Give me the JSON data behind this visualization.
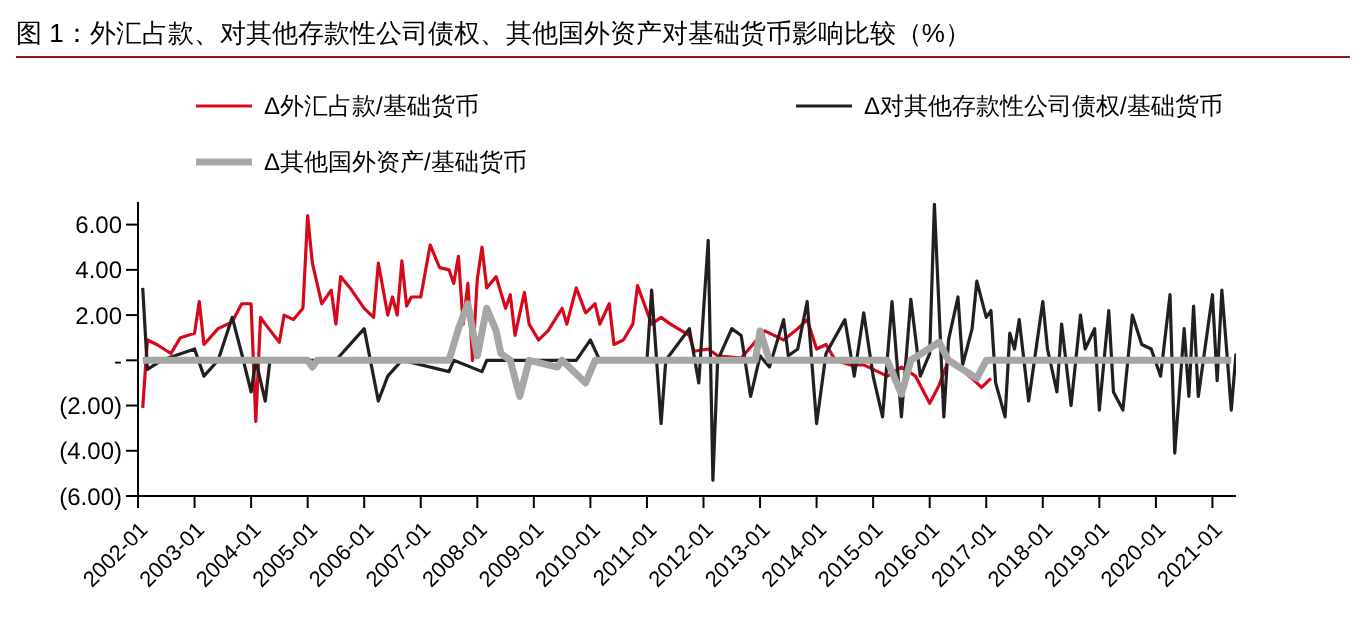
{
  "chart_data": {
    "type": "line",
    "title": "图 1：外汇占款、对其他存款性公司债权、其他国外资产对基础货币影响比较（%）",
    "legend": "top",
    "grid": false,
    "marker": "none",
    "line_style": "solid",
    "xlim": [
      "2002-01",
      "2021-06"
    ],
    "xticks": [
      "2002-01",
      "2003-01",
      "2004-01",
      "2005-01",
      "2006-01",
      "2007-01",
      "2008-01",
      "2009-01",
      "2010-01",
      "2011-01",
      "2012-01",
      "2013-01",
      "2014-01",
      "2015-01",
      "2016-01",
      "2017-01",
      "2018-01",
      "2019-01",
      "2020-01",
      "2021-01"
    ],
    "ylim": [
      -6,
      7
    ],
    "yticks": [
      {
        "value": 6,
        "label": "6.00"
      },
      {
        "value": 4,
        "label": "4.00"
      },
      {
        "value": 2,
        "label": "2.00"
      },
      {
        "value": 0,
        "label": "-"
      },
      {
        "value": -2,
        "label": "(2.00)"
      },
      {
        "value": -4,
        "label": "(4.00)"
      },
      {
        "value": -6,
        "label": "(6.00)"
      }
    ],
    "series": [
      {
        "name": "Δ外汇占款/基础货币",
        "color": "#d7081c",
        "x": [
          "2002-02",
          "2002-03",
          "2002-05",
          "2002-08",
          "2002-10",
          "2003-01",
          "2003-02",
          "2003-03",
          "2003-06",
          "2003-09",
          "2003-11",
          "2004-01",
          "2004-02",
          "2004-03",
          "2004-04",
          "2004-07",
          "2004-08",
          "2004-10",
          "2004-12",
          "2005-01",
          "2005-02",
          "2005-04",
          "2005-06",
          "2005-07",
          "2005-08",
          "2005-10",
          "2006-01",
          "2006-03",
          "2006-04",
          "2006-06",
          "2006-07",
          "2006-08",
          "2006-09",
          "2006-10",
          "2006-11",
          "2007-01",
          "2007-03",
          "2007-05",
          "2007-07",
          "2007-08",
          "2007-09",
          "2007-10",
          "2007-11",
          "2007-12",
          "2008-01",
          "2008-02",
          "2008-03",
          "2008-05",
          "2008-07",
          "2008-08",
          "2008-09",
          "2008-11",
          "2008-12",
          "2009-02",
          "2009-04",
          "2009-07",
          "2009-08",
          "2009-10",
          "2009-12",
          "2010-02",
          "2010-03",
          "2010-05",
          "2010-06",
          "2010-08",
          "2010-10",
          "2010-11",
          "2011-02",
          "2011-04",
          "2011-06",
          "2011-10",
          "2011-11",
          "2012-02",
          "2012-04",
          "2012-09",
          "2013-02",
          "2013-06",
          "2013-09",
          "2013-11",
          "2014-01",
          "2014-03",
          "2014-05",
          "2014-08",
          "2014-11",
          "2015-02",
          "2015-04",
          "2015-07",
          "2015-10",
          "2016-01",
          "2016-03",
          "2016-05",
          "2016-07",
          "2016-10",
          "2016-12",
          "2017-02"
        ],
        "values": [
          -2.1,
          0.9,
          0.7,
          0.3,
          1.0,
          1.2,
          2.6,
          0.7,
          1.4,
          1.7,
          2.5,
          2.5,
          -2.7,
          1.9,
          1.6,
          0.8,
          2.0,
          1.8,
          2.3,
          6.4,
          4.3,
          2.5,
          3.1,
          1.6,
          3.7,
          3.2,
          2.3,
          1.9,
          4.3,
          2.0,
          2.8,
          2.0,
          4.4,
          2.4,
          2.8,
          2.8,
          5.1,
          4.1,
          4.0,
          3.4,
          4.6,
          1.6,
          3.4,
          0,
          3.6,
          5.0,
          3.2,
          3.7,
          2.3,
          2.9,
          1.1,
          3.0,
          1.6,
          0.9,
          1.3,
          2.3,
          1.6,
          3.2,
          2.1,
          2.5,
          1.6,
          2.5,
          0.7,
          0.9,
          1.6,
          3.3,
          1.6,
          1.9,
          1.6,
          1.1,
          0.4,
          0.5,
          0.2,
          0.1,
          1.3,
          0.9,
          1.4,
          1.8,
          0.5,
          0.7,
          0,
          -0.2,
          -0.2,
          -0.5,
          -0.7,
          -0.3,
          -0.7,
          -1.9,
          -1.1,
          0,
          -0.3,
          -0.8,
          -1.2,
          -0.8
        ]
      },
      {
        "name": "Δ对其他存款性公司债权/基础货币",
        "color": "#231f20",
        "x": [
          "2002-02",
          "2002-03",
          "2002-06",
          "2003-01",
          "2003-03",
          "2003-06",
          "2003-09",
          "2003-11",
          "2004-01",
          "2004-02",
          "2004-04",
          "2004-05",
          "2005-07",
          "2006-01",
          "2006-04",
          "2006-06",
          "2006-09",
          "2007-07",
          "2007-08",
          "2008-02",
          "2008-03",
          "2009-10",
          "2010-01",
          "2010-03",
          "2011-01",
          "2011-02",
          "2011-04",
          "2011-05",
          "2011-10",
          "2011-12",
          "2012-02",
          "2012-03",
          "2012-04",
          "2012-07",
          "2012-09",
          "2012-11",
          "2013-01",
          "2013-03",
          "2013-06",
          "2013-07",
          "2013-09",
          "2013-11",
          "2014-01",
          "2014-03",
          "2014-07",
          "2014-09",
          "2014-11",
          "2015-01",
          "2015-03",
          "2015-05",
          "2015-07",
          "2015-09",
          "2015-11",
          "2016-01",
          "2016-02",
          "2016-04",
          "2016-05",
          "2016-07",
          "2016-08",
          "2016-10",
          "2016-11",
          "2017-01",
          "2017-02",
          "2017-03",
          "2017-05",
          "2017-06",
          "2017-07",
          "2017-08",
          "2017-10",
          "2018-01",
          "2018-02",
          "2018-04",
          "2018-05",
          "2018-07",
          "2018-09",
          "2018-10",
          "2018-12",
          "2019-01",
          "2019-03",
          "2019-04",
          "2019-06",
          "2019-08",
          "2019-10",
          "2019-12",
          "2020-02",
          "2020-04",
          "2020-05",
          "2020-07",
          "2020-08",
          "2020-09",
          "2020-10",
          "2021-01",
          "2021-02",
          "2021-03",
          "2021-04",
          "2021-05",
          "2021-06"
        ],
        "values": [
          3.2,
          -0.4,
          0,
          0.5,
          -0.7,
          0,
          1.9,
          0.3,
          -1.4,
          0,
          -1.8,
          0,
          0,
          1.4,
          -1.8,
          -0.7,
          0,
          -0.5,
          0,
          -0.5,
          0,
          0,
          0.9,
          0,
          0,
          3.1,
          -2.8,
          0,
          1.4,
          -1.0,
          5.3,
          -5.3,
          0,
          1.4,
          1.1,
          -1.6,
          0.2,
          -0.3,
          1.8,
          0.2,
          0.5,
          2.6,
          -2.8,
          0.3,
          1.8,
          -0.7,
          2.1,
          -0.7,
          -2.5,
          2.6,
          -2.5,
          2.7,
          -0.7,
          0.3,
          6.9,
          -2.5,
          0.9,
          2.8,
          -0.2,
          1.4,
          3.5,
          1.9,
          2.2,
          -1.0,
          -2.5,
          1.2,
          0.5,
          1.8,
          -1.8,
          2.6,
          0.5,
          -1.4,
          1.6,
          -2.0,
          2.0,
          0.5,
          1.4,
          -2.2,
          2.2,
          -1.4,
          -2.2,
          2.0,
          0.7,
          0.5,
          -0.7,
          2.9,
          -4.1,
          1.4,
          -1.6,
          2.4,
          -1.6,
          2.9,
          -0.9,
          3.1,
          0.5,
          -2.2,
          0.3
        ]
      },
      {
        "name": "Δ其他国外资产/基础货币",
        "color": "#a6a6a6",
        "x": [
          "2002-02",
          "2005-01",
          "2005-02",
          "2005-03",
          "2007-07",
          "2007-09",
          "2007-11",
          "2008-01",
          "2008-03",
          "2008-05",
          "2008-06",
          "2008-08",
          "2008-10",
          "2008-12",
          "2009-06",
          "2009-07",
          "2009-12",
          "2010-02",
          "2012-12",
          "2013-01",
          "2013-03",
          "2015-04",
          "2015-07",
          "2015-09",
          "2016-03",
          "2016-05",
          "2016-11",
          "2017-01",
          "2021-05"
        ],
        "values": [
          0,
          0,
          -0.3,
          0,
          0,
          1.4,
          2.5,
          0.2,
          2.3,
          1.3,
          0.3,
          0,
          -1.6,
          0,
          -0.3,
          0,
          -1.0,
          0,
          0,
          1.3,
          0,
          0,
          -1.5,
          0,
          0.8,
          0,
          -0.8,
          0,
          0
        ]
      }
    ]
  }
}
